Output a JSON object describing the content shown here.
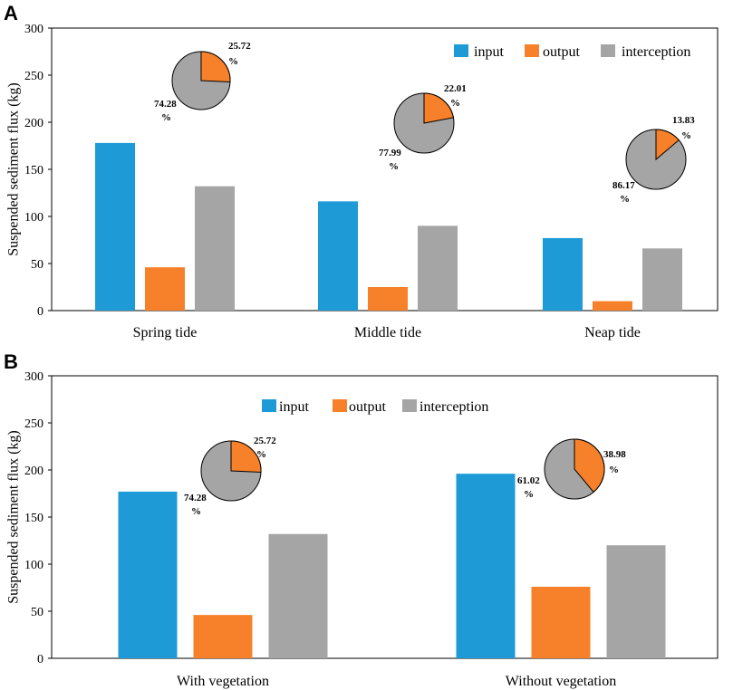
{
  "colors": {
    "input": "#1E9BD7",
    "output": "#F7812A",
    "interception": "#A5A5A5",
    "axis": "#000000"
  },
  "chart_data": [
    {
      "panel": "A",
      "type": "bar",
      "ylabel": "Suspended sediment flux (kg)",
      "ylim": [
        0,
        300
      ],
      "yticks": [
        0,
        50,
        100,
        150,
        200,
        250,
        300
      ],
      "categories": [
        "Spring tide",
        "Middle tide",
        "Neap tide"
      ],
      "series": [
        {
          "name": "input",
          "values": [
            178,
            116,
            77
          ]
        },
        {
          "name": "output",
          "values": [
            46,
            25,
            10
          ]
        },
        {
          "name": "interception",
          "values": [
            132,
            90,
            66
          ]
        }
      ],
      "legend": "top-right",
      "pies": [
        {
          "category": "Spring tide",
          "output_pct": 25.72,
          "output_label": "25.72",
          "interception_label": "74.28",
          "unit": "%"
        },
        {
          "category": "Middle tide",
          "output_pct": 22.01,
          "output_label": "22.01",
          "interception_label": "77.99",
          "unit": "%"
        },
        {
          "category": "Neap tide",
          "output_pct": 13.83,
          "output_label": "13.83",
          "interception_label": "86.17",
          "unit": "%"
        }
      ]
    },
    {
      "panel": "B",
      "type": "bar",
      "ylabel": "Suspended sediment flux (kg)",
      "ylim": [
        0,
        300
      ],
      "yticks": [
        0,
        50,
        100,
        150,
        200,
        250,
        300
      ],
      "categories": [
        "With vegetation",
        "Without vegetation"
      ],
      "series": [
        {
          "name": "input",
          "values": [
            177,
            196
          ]
        },
        {
          "name": "output",
          "values": [
            46,
            76
          ]
        },
        {
          "name": "interception",
          "values": [
            132,
            120
          ]
        }
      ],
      "legend": "top-center",
      "pies": [
        {
          "category": "With vegetation",
          "output_pct": 25.72,
          "output_label": "25.72",
          "interception_label": "74.28",
          "unit": "%"
        },
        {
          "category": "Without vegetation",
          "output_pct": 38.98,
          "output_label": "38.98",
          "interception_label": "61.02",
          "unit": "%"
        }
      ]
    }
  ]
}
